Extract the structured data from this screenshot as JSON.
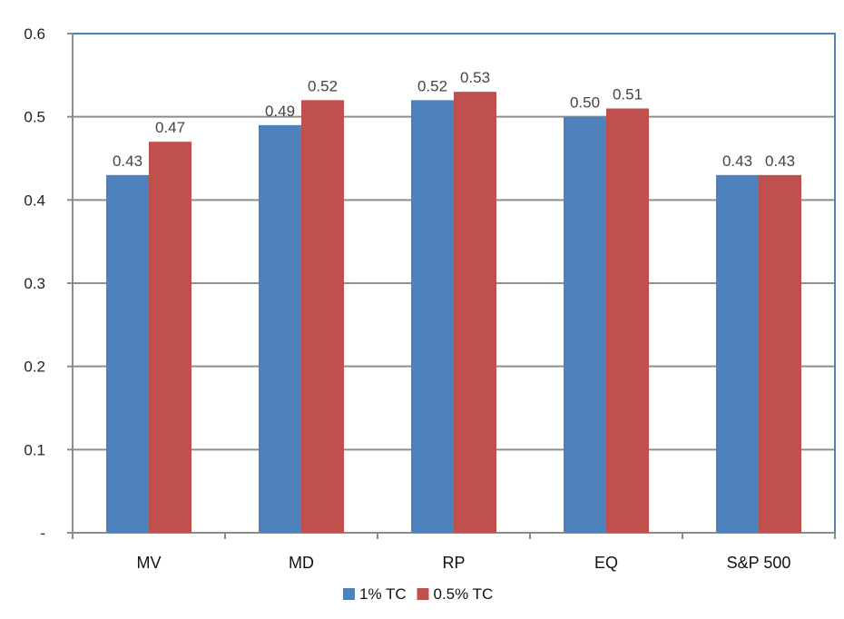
{
  "chart_data": {
    "type": "bar",
    "title": "",
    "xlabel": "",
    "ylabel": "",
    "categories": [
      "MV",
      "MD",
      "RP",
      "EQ",
      "S&P 500"
    ],
    "series": [
      {
        "name": "1% TC",
        "values": [
          0.43,
          0.49,
          0.52,
          0.5,
          0.43
        ],
        "labels": [
          "0.43",
          "0.49",
          "0.52",
          "0.50",
          "0.43"
        ],
        "color": "#4f81bd"
      },
      {
        "name": "0.5% TC",
        "values": [
          0.47,
          0.52,
          0.53,
          0.51,
          0.43
        ],
        "labels": [
          "0.47",
          "0.52",
          "0.53",
          "0.51",
          "0.43"
        ],
        "color": "#c0504d"
      }
    ],
    "ylim": [
      0,
      0.6
    ],
    "yticks": [
      0,
      0.1,
      0.2,
      0.3,
      0.4,
      0.5,
      0.6
    ],
    "ytick_labels": [
      "-",
      "0.1",
      "0.2",
      "0.3",
      "0.4",
      "0.5",
      "0.6"
    ],
    "grid": true,
    "legend_position": "bottom",
    "plot_border_color": "#4f81bd",
    "gridline_color": "#8c8c8c"
  }
}
